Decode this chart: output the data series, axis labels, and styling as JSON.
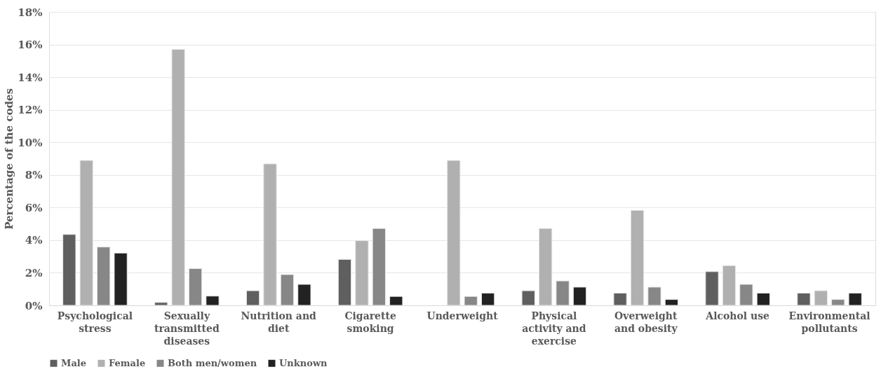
{
  "chart_data": {
    "type": "bar",
    "ylabel": "Percentage of the codes",
    "categories": [
      "Psychological stress",
      "Sexually transmitted diseases",
      "Nutrition and diet",
      "Cigarette smoking",
      "Underweight",
      "Physical activity and exercise",
      "Overweight and obesity",
      "Alcohol use",
      "Environmental pollutants"
    ],
    "series": [
      {
        "name": "Male",
        "color": "#5f5f5f",
        "values": [
          4.35,
          0.18,
          0.9,
          2.82,
          null,
          0.9,
          0.75,
          2.07,
          0.75
        ]
      },
      {
        "name": "Female",
        "color": "#b0b0b0",
        "values": [
          8.89,
          15.7,
          8.68,
          3.97,
          8.89,
          4.72,
          5.83,
          2.44,
          0.9
        ]
      },
      {
        "name": "Both men/women",
        "color": "#878787",
        "values": [
          3.58,
          2.26,
          1.89,
          4.72,
          0.55,
          1.5,
          1.12,
          1.29,
          0.36
        ]
      },
      {
        "name": "Unknown",
        "color": "#222222",
        "values": [
          3.21,
          0.57,
          1.29,
          0.55,
          0.75,
          1.12,
          0.36,
          0.75,
          0.75
        ]
      }
    ],
    "ylim": [
      0,
      18
    ],
    "yticks": [
      {
        "value": 0,
        "label": "0%"
      },
      {
        "value": 2,
        "label": "2%"
      },
      {
        "value": 4,
        "label": "4%"
      },
      {
        "value": 6,
        "label": "6%"
      },
      {
        "value": 8,
        "label": "8%"
      },
      {
        "value": 10,
        "label": "10%"
      },
      {
        "value": 12,
        "label": "12%"
      },
      {
        "value": 14,
        "label": "14%"
      },
      {
        "value": 16,
        "label": "16%"
      },
      {
        "value": 18,
        "label": "18%"
      }
    ],
    "grid": "y",
    "legend": "bottom"
  }
}
